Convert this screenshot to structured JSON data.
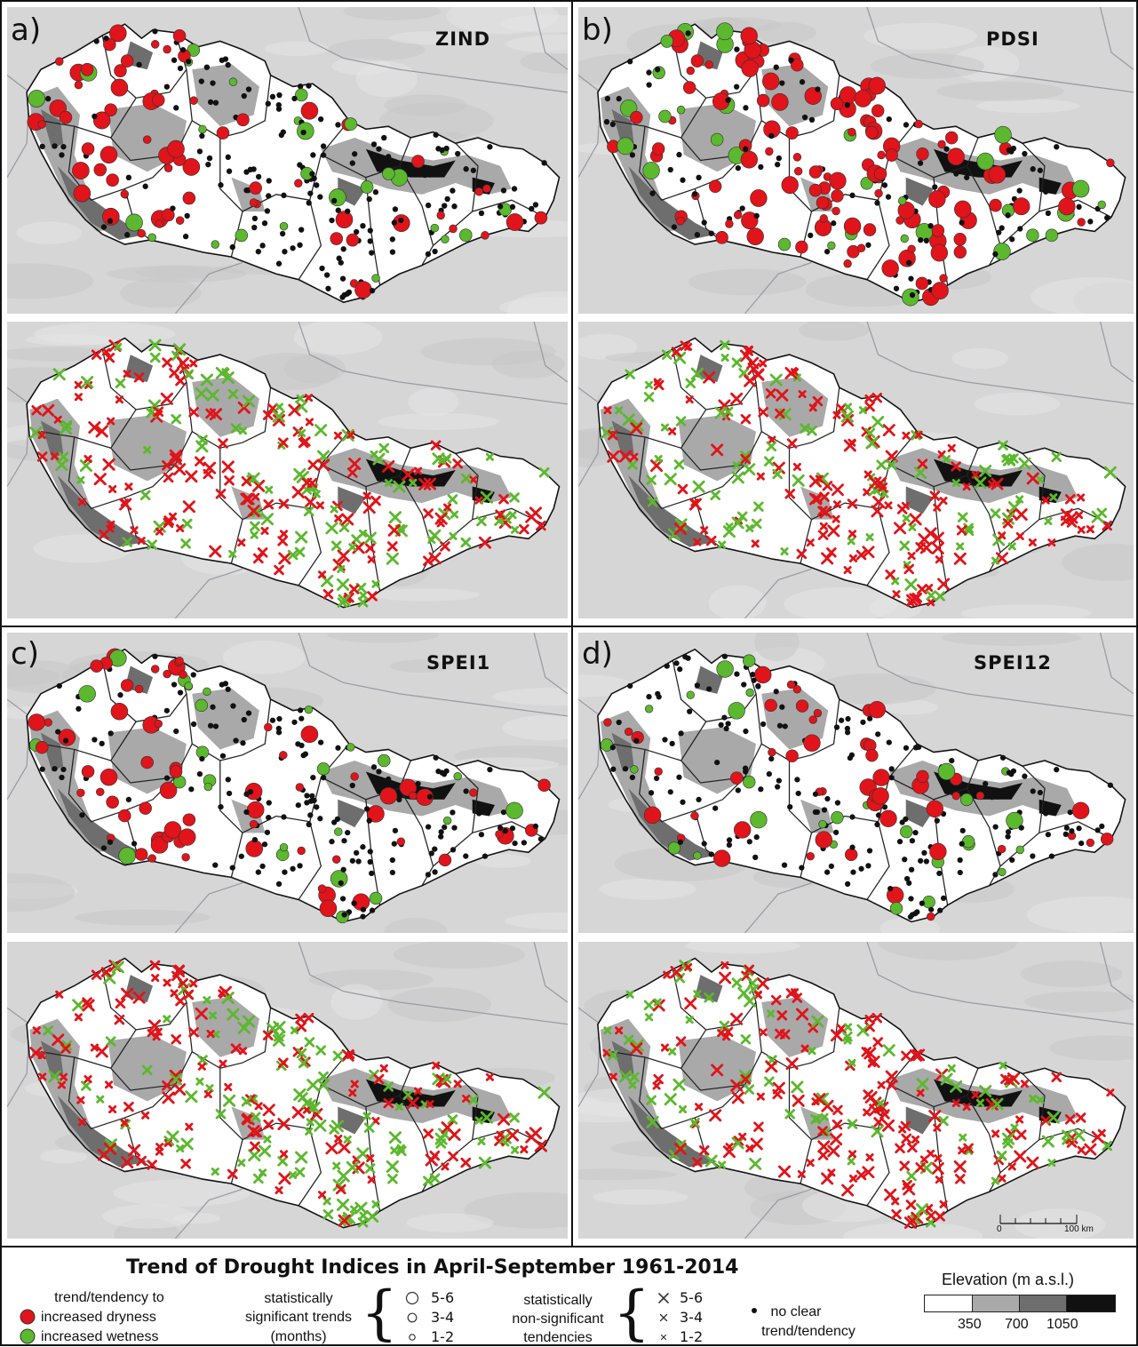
{
  "figure_title": "Trend of Drought Indices in April-September 1961-2014",
  "panels": [
    {
      "letter": "a)",
      "index": "ZIND"
    },
    {
      "letter": "b)",
      "index": "PDSI"
    },
    {
      "letter": "c)",
      "index": "SPEI1"
    },
    {
      "letter": "d)",
      "index": "SPEI12"
    }
  ],
  "scale_bar": {
    "start": "0",
    "end": "100 km"
  },
  "legend": {
    "trend_heading": "trend/tendency to",
    "dryness": "increased dryness",
    "wetness": "increased wetness",
    "significant_label": [
      "statistically",
      "significant trends",
      "(months)"
    ],
    "nonsignificant_label": [
      "statistically",
      "non-significant",
      "tendencies"
    ],
    "month_classes": [
      "5-6",
      "3-4",
      "1-2"
    ],
    "no_clear": [
      "no clear",
      "trend/tendency"
    ],
    "elevation_title": "Elevation (m a.s.l.)",
    "elevation_ticks": [
      "350",
      "700",
      "1050"
    ]
  },
  "colors": {
    "dryness": "#e0141a",
    "wetness": "#5cb82e",
    "no_clear": "#111111",
    "relief": "#d6d6d6",
    "elevation_classes": [
      "#ffffff",
      "#a9a9a9",
      "#6e6e6e",
      "#111111"
    ]
  },
  "map_layers": [
    "relief-background",
    "country-outline",
    "region-borders",
    "elevation-shading",
    "station-markers"
  ]
}
